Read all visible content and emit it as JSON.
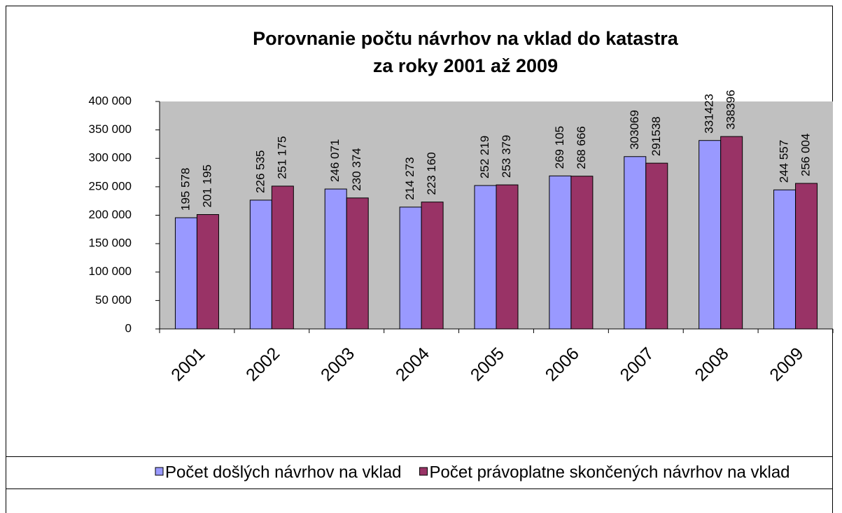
{
  "chart_data": {
    "type": "bar",
    "title": [
      "Porovnanie počtu návrhov na vklad do katastra",
      "za roky 2001 až 2009"
    ],
    "categories": [
      "2001",
      "2002",
      "2003",
      "2004",
      "2005",
      "2006",
      "2007",
      "2008",
      "2009"
    ],
    "series": [
      {
        "name": "Počet došlých návrhov na vklad",
        "color": "#9999ff",
        "values": [
          195578,
          226535,
          246071,
          214273,
          252219,
          269105,
          303069,
          331423,
          244557
        ],
        "value_labels": [
          "195 578",
          "226 535",
          "246 071",
          "214 273",
          "252 219",
          "269 105",
          "303069",
          "331423",
          "244 557"
        ]
      },
      {
        "name": "Počet právoplatne skončených návrhov na vklad",
        "color": "#993366",
        "values": [
          201195,
          251175,
          230374,
          223160,
          253379,
          268666,
          291538,
          338396,
          256004
        ],
        "value_labels": [
          "201 195",
          "251 175",
          "230 374",
          "223 160",
          "253 379",
          "268 666",
          "291538",
          "338396",
          "256 004"
        ]
      }
    ],
    "ylim": [
      0,
      400000
    ],
    "yticks": [
      0,
      {
        "value": 50000,
        "label": "50 000"
      },
      {
        "value": 100000,
        "label": "100 000"
      },
      {
        "value": 150000,
        "label": "150 000"
      },
      {
        "value": 200000,
        "label": "200 000"
      },
      {
        "value": 250000,
        "label": "250 000"
      },
      {
        "value": 300000,
        "label": "300 000"
      },
      {
        "value": 350000,
        "label": "350 000"
      },
      {
        "value": 400000,
        "label": "400 000"
      }
    ],
    "grid": false,
    "legend": "bottom"
  }
}
